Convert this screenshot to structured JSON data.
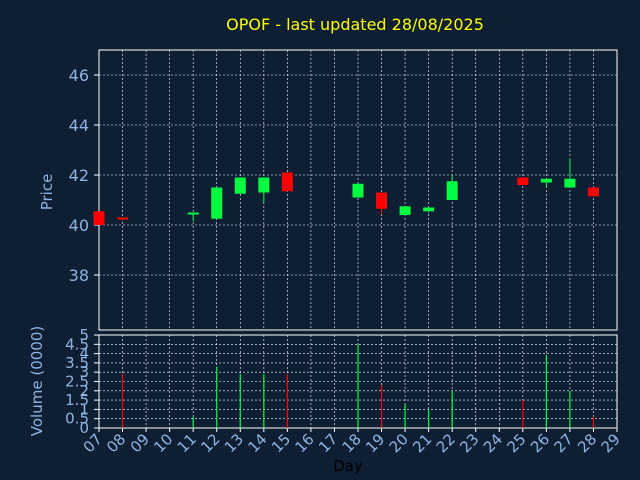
{
  "chart_data": [
    {
      "type": "candlestick",
      "title": "OPOF - last updated 28/08/2025",
      "ylabel": "Price",
      "ylim": [
        35.8,
        47.0
      ],
      "yticks": [
        38,
        40,
        42,
        44,
        46
      ],
      "grid": true,
      "colors": {
        "up": "#00ff40",
        "down": "#ff0000",
        "background": "#0f1f33",
        "grid": "#ffffff",
        "text": "#8db4e2",
        "title": "#ffff00"
      },
      "days": [
        "07",
        "08",
        "09",
        "10",
        "11",
        "12",
        "13",
        "14",
        "15",
        "16",
        "17",
        "18",
        "19",
        "20",
        "21",
        "22",
        "23",
        "24",
        "25",
        "26",
        "27",
        "28",
        "29"
      ],
      "candles": [
        {
          "day": "07",
          "open": 40.55,
          "close": 40.0,
          "high": 40.55,
          "low": 40.0
        },
        {
          "day": "08",
          "open": 40.3,
          "close": 40.25,
          "high": 40.3,
          "low": 40.25
        },
        {
          "day": "11",
          "open": 40.45,
          "close": 40.5,
          "high": 40.5,
          "low": 40.15
        },
        {
          "day": "12",
          "open": 40.25,
          "close": 41.5,
          "high": 41.5,
          "low": 40.25
        },
        {
          "day": "13",
          "open": 41.25,
          "close": 41.9,
          "high": 41.9,
          "low": 41.25
        },
        {
          "day": "14",
          "open": 41.3,
          "close": 41.9,
          "high": 41.9,
          "low": 40.9
        },
        {
          "day": "15",
          "open": 42.1,
          "close": 41.35,
          "high": 42.1,
          "low": 41.35
        },
        {
          "day": "18",
          "open": 41.1,
          "close": 41.65,
          "high": 41.65,
          "low": 41.1
        },
        {
          "day": "19",
          "open": 41.3,
          "close": 40.65,
          "high": 41.3,
          "low": 40.45
        },
        {
          "day": "20",
          "open": 40.4,
          "close": 40.75,
          "high": 40.75,
          "low": 40.4
        },
        {
          "day": "21",
          "open": 40.55,
          "close": 40.7,
          "high": 40.7,
          "low": 40.5
        },
        {
          "day": "22",
          "open": 41.0,
          "close": 41.75,
          "high": 42.0,
          "low": 41.0
        },
        {
          "day": "25",
          "open": 41.9,
          "close": 41.6,
          "high": 41.9,
          "low": 41.6
        },
        {
          "day": "26",
          "open": 41.7,
          "close": 41.85,
          "high": 41.85,
          "low": 41.5
        },
        {
          "day": "27",
          "open": 41.5,
          "close": 41.85,
          "high": 42.65,
          "low": 41.5
        },
        {
          "day": "28",
          "open": 41.5,
          "close": 41.15,
          "high": 41.5,
          "low": 41.15
        }
      ]
    },
    {
      "type": "bar",
      "ylabel": "Volume (0000)",
      "xlabel": "Day",
      "ylim": [
        0,
        5
      ],
      "yticks": [
        0,
        0.5,
        1,
        1.5,
        2,
        2.5,
        3,
        3.5,
        4,
        4.5,
        5
      ],
      "ytick_labels": [
        "0",
        "0.5",
        "1",
        "1.5",
        "2",
        "2.5",
        "3",
        "3.5",
        "4",
        "4.5",
        "5"
      ],
      "categories": [
        "07",
        "08",
        "09",
        "10",
        "11",
        "12",
        "13",
        "14",
        "15",
        "16",
        "17",
        "18",
        "19",
        "20",
        "21",
        "22",
        "23",
        "24",
        "25",
        "26",
        "27",
        "28",
        "29"
      ],
      "bars": [
        {
          "day": "08",
          "value": 2.9,
          "color": "down"
        },
        {
          "day": "11",
          "value": 0.6,
          "color": "up"
        },
        {
          "day": "12",
          "value": 3.3,
          "color": "up"
        },
        {
          "day": "13",
          "value": 2.9,
          "color": "up"
        },
        {
          "day": "14",
          "value": 2.9,
          "color": "up"
        },
        {
          "day": "15",
          "value": 2.9,
          "color": "down"
        },
        {
          "day": "18",
          "value": 4.5,
          "color": "up"
        },
        {
          "day": "19",
          "value": 2.3,
          "color": "down"
        },
        {
          "day": "20",
          "value": 1.3,
          "color": "up"
        },
        {
          "day": "21",
          "value": 1.0,
          "color": "up"
        },
        {
          "day": "22",
          "value": 2.0,
          "color": "up"
        },
        {
          "day": "25",
          "value": 1.5,
          "color": "down"
        },
        {
          "day": "26",
          "value": 3.9,
          "color": "up"
        },
        {
          "day": "27",
          "value": 2.0,
          "color": "up"
        },
        {
          "day": "28",
          "value": 0.6,
          "color": "down"
        }
      ]
    }
  ]
}
